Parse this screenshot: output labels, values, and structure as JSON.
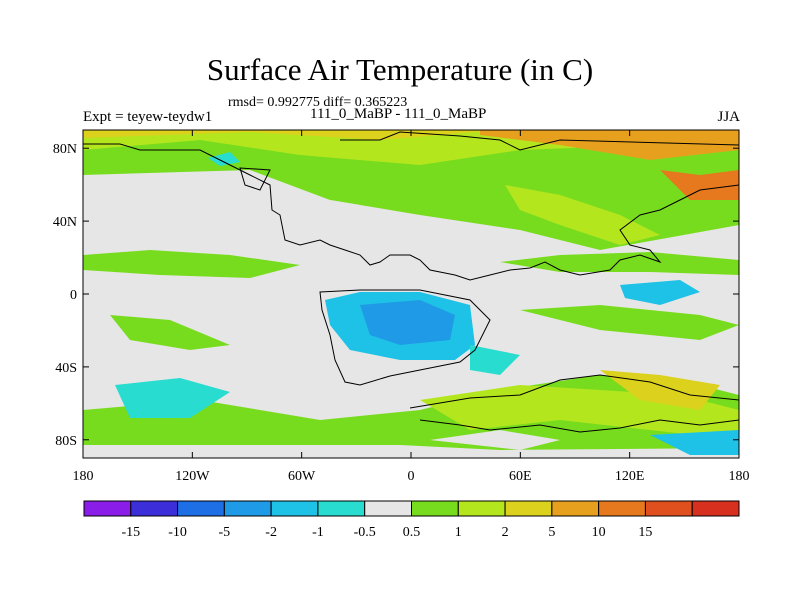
{
  "title": "Surface Air Temperature (in C)",
  "stats_text": "rmsd= 0.992775 diff= 0.365223",
  "experiment_label": "Expt = teyew-teydw1",
  "period_label": "111_0_MaBP - 111_0_MaBP",
  "season_label": "JJA",
  "map": {
    "projection": "cylindrical equidistant",
    "lon_range": [
      -180,
      180
    ],
    "lat_range": [
      -90,
      90
    ],
    "x_ticks": [
      {
        "value": -180,
        "label": "180"
      },
      {
        "value": -120,
        "label": "120W"
      },
      {
        "value": -60,
        "label": "60W"
      },
      {
        "value": 0,
        "label": "0"
      },
      {
        "value": 60,
        "label": "60E"
      },
      {
        "value": 120,
        "label": "120E"
      },
      {
        "value": 180,
        "label": "180"
      }
    ],
    "y_ticks": [
      {
        "value": 80,
        "label": "80N"
      },
      {
        "value": 40,
        "label": "40N"
      },
      {
        "value": 0,
        "label": "0"
      },
      {
        "value": -40,
        "label": "40S"
      },
      {
        "value": -80,
        "label": "80S"
      }
    ]
  },
  "colorbar": {
    "labels": [
      "-15",
      "-10",
      "-5",
      "-2",
      "-1",
      "-0.5",
      "0.5",
      "1",
      "2",
      "5",
      "10",
      "15"
    ],
    "colors": [
      "#8a1ee8",
      "#3c2ed8",
      "#1e6ee6",
      "#1e9ae6",
      "#1ec2e6",
      "#28dcd0",
      "#e6e6e6",
      "#78dc1e",
      "#b4e61e",
      "#dcd21e",
      "#e6a01e",
      "#e6781e",
      "#e0501e",
      "#d7301e"
    ]
  }
}
